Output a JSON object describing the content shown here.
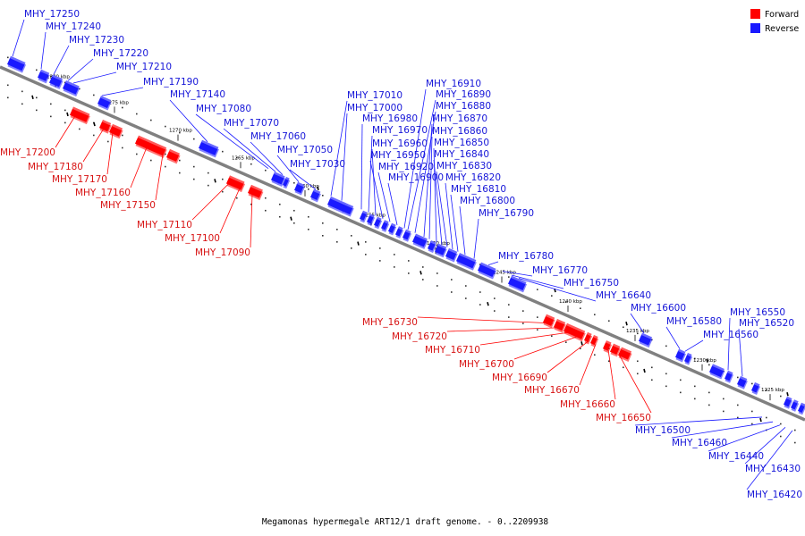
{
  "caption": "Megamonas hypermegale ART12/1 draft genome. - 0..2209938",
  "colors": {
    "forward": "#ff0000",
    "reverse": "#1a1aff",
    "backbone": "#808080"
  },
  "legend": [
    {
      "label": "Forward",
      "color": "#ff0000"
    },
    {
      "label": "Reverse",
      "color": "#1a1aff"
    }
  ],
  "ticks": [
    "1280 kbp",
    "1275 kbp",
    "1270 kbp",
    "1265 kbp",
    "1260 kbp",
    "1255 kbp",
    "1250 kbp",
    "1245 kbp",
    "1240 kbp",
    "1235 kbp",
    "1230 kbp",
    "1225 kbp"
  ],
  "reverse_genes": [
    "MHY_17250",
    "MHY_17240",
    "MHY_17230",
    "MHY_17220",
    "MHY_17210",
    "MHY_17190",
    "MHY_17140",
    "MHY_17080",
    "MHY_17070",
    "MHY_17060",
    "MHY_17050",
    "MHY_17030",
    "MHY_17010",
    "MHY_17000",
    "MHY_16980",
    "MHY_16970",
    "MHY_16960",
    "MHY_16950",
    "MHY_16920",
    "MHY_16900",
    "MHY_16910",
    "MHY_16890",
    "MHY_16880",
    "MHY_16870",
    "MHY_16860",
    "MHY_16850",
    "MHY_16840",
    "MHY_16830",
    "MHY_16820",
    "MHY_16810",
    "MHY_16800",
    "MHY_16790",
    "MHY_16780",
    "MHY_16770",
    "MHY_16750",
    "MHY_16640",
    "MHY_16600",
    "MHY_16580",
    "MHY_16560",
    "MHY_16550",
    "MHY_16520",
    "MHY_16500",
    "MHY_16460",
    "MHY_16440",
    "MHY_16430",
    "MHY_16420"
  ],
  "forward_genes": [
    "MHY_17200",
    "MHY_17180",
    "MHY_17170",
    "MHY_17160",
    "MHY_17150",
    "MHY_17110",
    "MHY_17100",
    "MHY_17090",
    "MHY_16730",
    "MHY_16720",
    "MHY_16710",
    "MHY_16700",
    "MHY_16690",
    "MHY_16670",
    "MHY_16660",
    "MHY_16650"
  ]
}
